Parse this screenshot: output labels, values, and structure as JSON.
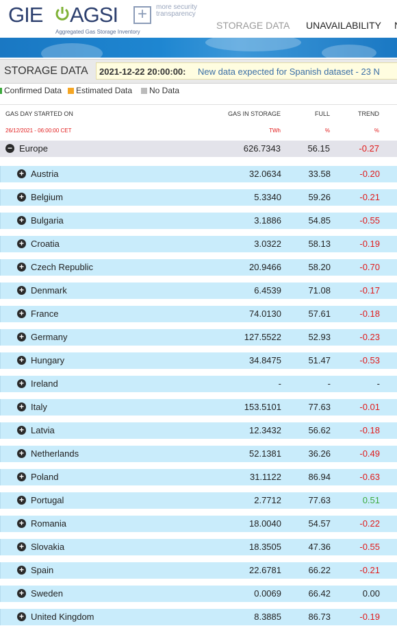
{
  "header": {
    "logo_gie": "GIE",
    "logo_agsi": "AGSI",
    "logo_plus": "+",
    "logo_tagline": "more security transparency",
    "logo_subtitle": "Aggregated Gas Storage Inventory",
    "nav": [
      "STORAGE DATA",
      "UNAVAILABILITY",
      "N"
    ]
  },
  "title_bar": {
    "title": "STORAGE DATA",
    "ticker_timestamp": "2021-12-22 20:00:00:",
    "ticker_message": "New data expected for Spanish dataset - 23 N"
  },
  "legend": [
    {
      "label": "Confirmed Data",
      "color": "#3daa3d"
    },
    {
      "label": "Estimated Data",
      "color": "#f5a623"
    },
    {
      "label": "No Data",
      "color": "#bbbbbb"
    }
  ],
  "table": {
    "columns": {
      "gas_day": "GAS DAY STARTED ON",
      "gas_in_storage": "GAS IN STORAGE",
      "full": "FULL",
      "trend": "TREND"
    },
    "units": {
      "gas_day": "26/12/2021 - 06:00:00 CET",
      "gas_in_storage": "TWh",
      "full": "%",
      "trend": "%"
    },
    "rows": [
      {
        "name": "Europe",
        "gas": "626.7343",
        "full": "56.15",
        "trend": "-0.27",
        "kind": "europe",
        "trend_sign": "neg"
      },
      {
        "name": "Austria",
        "gas": "32.0634",
        "full": "33.58",
        "trend": "-0.20",
        "kind": "country",
        "trend_sign": "neg"
      },
      {
        "name": "Belgium",
        "gas": "5.3340",
        "full": "59.26",
        "trend": "-0.21",
        "kind": "country",
        "trend_sign": "neg"
      },
      {
        "name": "Bulgaria",
        "gas": "3.1886",
        "full": "54.85",
        "trend": "-0.55",
        "kind": "country",
        "trend_sign": "neg"
      },
      {
        "name": "Croatia",
        "gas": "3.0322",
        "full": "58.13",
        "trend": "-0.19",
        "kind": "country",
        "trend_sign": "neg"
      },
      {
        "name": "Czech Republic",
        "gas": "20.9466",
        "full": "58.20",
        "trend": "-0.70",
        "kind": "country",
        "trend_sign": "neg"
      },
      {
        "name": "Denmark",
        "gas": "6.4539",
        "full": "71.08",
        "trend": "-0.17",
        "kind": "country",
        "trend_sign": "neg"
      },
      {
        "name": "France",
        "gas": "74.0130",
        "full": "57.61",
        "trend": "-0.18",
        "kind": "country",
        "trend_sign": "neg"
      },
      {
        "name": "Germany",
        "gas": "127.5522",
        "full": "52.93",
        "trend": "-0.23",
        "kind": "country",
        "trend_sign": "neg"
      },
      {
        "name": "Hungary",
        "gas": "34.8475",
        "full": "51.47",
        "trend": "-0.53",
        "kind": "country",
        "trend_sign": "neg"
      },
      {
        "name": "Ireland",
        "gas": "-",
        "full": "-",
        "trend": "-",
        "kind": "country",
        "trend_sign": "none"
      },
      {
        "name": "Italy",
        "gas": "153.5101",
        "full": "77.63",
        "trend": "-0.01",
        "kind": "country",
        "trend_sign": "neg"
      },
      {
        "name": "Latvia",
        "gas": "12.3432",
        "full": "56.62",
        "trend": "-0.18",
        "kind": "country",
        "trend_sign": "neg"
      },
      {
        "name": "Netherlands",
        "gas": "52.1381",
        "full": "36.26",
        "trend": "-0.49",
        "kind": "country",
        "trend_sign": "neg"
      },
      {
        "name": "Poland",
        "gas": "31.1122",
        "full": "86.94",
        "trend": "-0.63",
        "kind": "country",
        "trend_sign": "neg"
      },
      {
        "name": "Portugal",
        "gas": "2.7712",
        "full": "77.63",
        "trend": "0.51",
        "kind": "country",
        "trend_sign": "pos"
      },
      {
        "name": "Romania",
        "gas": "18.0040",
        "full": "54.57",
        "trend": "-0.22",
        "kind": "country",
        "trend_sign": "neg"
      },
      {
        "name": "Slovakia",
        "gas": "18.3505",
        "full": "47.36",
        "trend": "-0.55",
        "kind": "country",
        "trend_sign": "neg"
      },
      {
        "name": "Spain",
        "gas": "22.6781",
        "full": "66.22",
        "trend": "-0.21",
        "kind": "country",
        "trend_sign": "neg"
      },
      {
        "name": "Sweden",
        "gas": "0.0069",
        "full": "66.42",
        "trend": "0.00",
        "kind": "country",
        "trend_sign": "none"
      },
      {
        "name": "United Kingdom",
        "gas": "8.3885",
        "full": "86.73",
        "trend": "-0.19",
        "kind": "country",
        "trend_sign": "neg"
      }
    ]
  }
}
